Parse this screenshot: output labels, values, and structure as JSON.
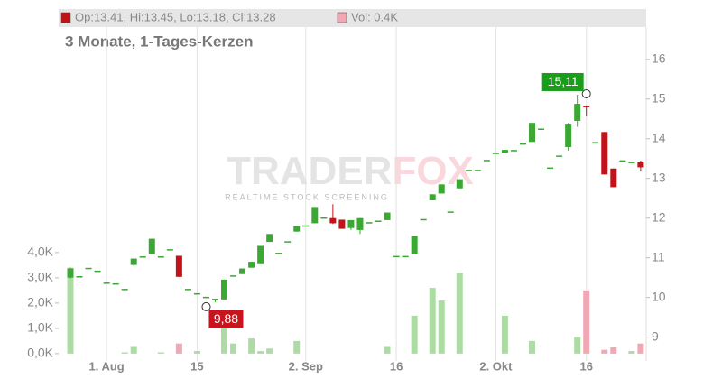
{
  "chart_data": {
    "type": "candlestick",
    "header": [
      "Op:13.41, Hi:13.45, Lo:13.18, Cl:13.28",
      "Vol: 0.4K"
    ],
    "subtitle": "3 Monate, 1-Tages-Kerzen",
    "watermark": [
      "TRADER",
      "FOX"
    ],
    "watermark_tagline": "REALTIME STOCK SCREENING",
    "categories": [
      null,
      null,
      null,
      null,
      "1. Aug",
      null,
      null,
      null,
      null,
      null,
      null,
      null,
      null,
      null,
      "15",
      null,
      null,
      null,
      null,
      null,
      null,
      null,
      null,
      null,
      null,
      null,
      "2. Sep",
      null,
      null,
      null,
      null,
      null,
      null,
      null,
      null,
      null,
      "16",
      null,
      null,
      null,
      null,
      null,
      null,
      null,
      null,
      null,
      null,
      "2. Okt",
      null,
      null,
      null,
      null,
      null,
      null,
      null,
      null,
      null,
      "16",
      null,
      null,
      null,
      null,
      null,
      null
    ],
    "open": [
      10.5,
      10.52,
      10.73,
      10.66,
      10.36,
      10.34,
      10.2,
      10.82,
      11.02,
      11.09,
      11.02,
      11.2,
      11.05,
      10.2,
      10.09,
      10.0,
      9.95,
      9.95,
      10.54,
      10.59,
      10.75,
      10.84,
      11.4,
      11.11,
      11.4,
      11.66,
      11.8,
      11.87,
      12.0,
      12.0,
      11.96,
      11.75,
      11.7,
      11.88,
      11.92,
      11.95,
      11.03,
      11.03,
      11.1,
      11.96,
      12.45,
      12.62,
      12.15,
      12.75,
      13.2,
      13.2,
      13.45,
      13.63,
      13.65,
      13.7,
      13.85,
      13.92,
      14.24,
      13.26,
      13.56,
      13.79,
      14.45,
      14.81,
      13.9,
      14.17,
      13.25,
      13.44,
      13.4,
      13.41
    ],
    "high": [
      10.75,
      10.52,
      10.73,
      10.66,
      10.36,
      10.34,
      10.2,
      10.98,
      11.02,
      11.48,
      11.02,
      11.2,
      11.05,
      10.2,
      10.09,
      10.0,
      9.95,
      10.45,
      10.54,
      10.73,
      10.9,
      11.3,
      11.6,
      11.11,
      11.4,
      11.8,
      11.8,
      12.28,
      12.0,
      12.35,
      11.96,
      11.95,
      12.0,
      11.88,
      11.92,
      12.14,
      11.03,
      11.03,
      11.55,
      11.96,
      12.6,
      12.85,
      12.15,
      12.98,
      13.2,
      13.2,
      13.45,
      13.63,
      13.72,
      13.7,
      13.9,
      14.4,
      14.24,
      13.26,
      13.56,
      14.4,
      15.11,
      14.82,
      13.9,
      14.17,
      13.25,
      13.44,
      13.4,
      13.45
    ],
    "low": [
      10.48,
      10.52,
      10.73,
      10.66,
      10.36,
      10.34,
      10.2,
      10.8,
      11.02,
      11.09,
      11.02,
      11.2,
      10.52,
      10.2,
      10.09,
      10.0,
      9.88,
      9.95,
      10.54,
      10.59,
      10.75,
      10.84,
      11.4,
      11.11,
      11.4,
      11.66,
      11.8,
      11.87,
      12.0,
      11.85,
      11.73,
      11.7,
      11.6,
      11.88,
      11.92,
      11.95,
      11.03,
      11.03,
      11.1,
      11.96,
      12.45,
      12.62,
      12.15,
      12.75,
      13.2,
      13.2,
      13.45,
      13.63,
      13.65,
      13.7,
      13.85,
      13.92,
      14.24,
      13.26,
      13.56,
      13.7,
      14.3,
      14.58,
      13.9,
      13.1,
      12.78,
      13.44,
      13.4,
      13.18
    ],
    "close": [
      10.73,
      10.52,
      10.73,
      10.66,
      10.36,
      10.34,
      10.2,
      10.98,
      11.02,
      11.48,
      11.02,
      11.2,
      10.52,
      10.2,
      10.09,
      10.0,
      9.95,
      10.45,
      10.54,
      10.73,
      10.9,
      11.3,
      11.6,
      11.11,
      11.4,
      11.8,
      11.8,
      12.28,
      12.0,
      11.87,
      11.73,
      11.95,
      12.0,
      11.88,
      11.92,
      12.14,
      11.03,
      11.03,
      11.55,
      11.96,
      12.6,
      12.85,
      12.15,
      12.98,
      13.2,
      13.2,
      13.45,
      13.63,
      13.72,
      13.7,
      13.9,
      14.4,
      14.24,
      13.26,
      13.56,
      14.38,
      14.88,
      14.8,
      13.9,
      13.1,
      12.78,
      13.44,
      13.4,
      13.28
    ],
    "volume": [
      3.4,
      0,
      0,
      0,
      0,
      0,
      0.05,
      0.3,
      0,
      0,
      0.05,
      0,
      0.4,
      0,
      0.1,
      0,
      0,
      1.3,
      0.4,
      0,
      0.6,
      0.1,
      0.2,
      0,
      0,
      0.5,
      0,
      0,
      0,
      0,
      0,
      0,
      0,
      0,
      0,
      0.3,
      0,
      0,
      1.5,
      0,
      2.6,
      2.1,
      0,
      3.2,
      0,
      0,
      0,
      0,
      1.5,
      0,
      0,
      0.5,
      0,
      0,
      0,
      0,
      0.65,
      2.5,
      0,
      0.15,
      0.25,
      0,
      0.1,
      0.4
    ],
    "up_color": "#3aa832",
    "down_color": "#c0141a",
    "volume_up_color": "#acdca4",
    "volume_down_color": "#f0a8b4",
    "ylim": [
      8.4,
      17.27
    ],
    "yticks": [
      9,
      10,
      11,
      12,
      13,
      14,
      15,
      16
    ],
    "y2lim": [
      -0.29,
      13.64
    ],
    "y2ticks": [
      {
        "value": 0,
        "label": "0,0K"
      },
      {
        "value": 1,
        "label": "1,0K"
      },
      {
        "value": 2,
        "label": "2,0K"
      },
      {
        "value": 3,
        "label": "3,0K"
      },
      {
        "value": 4,
        "label": "4,0K"
      }
    ],
    "annotations": [
      {
        "value": 15.11,
        "label": "15,11",
        "color": "#1a9e1a",
        "at": "high"
      },
      {
        "value": 9.88,
        "label": "9,88",
        "color": "#c8141e",
        "at": "low"
      }
    ]
  }
}
